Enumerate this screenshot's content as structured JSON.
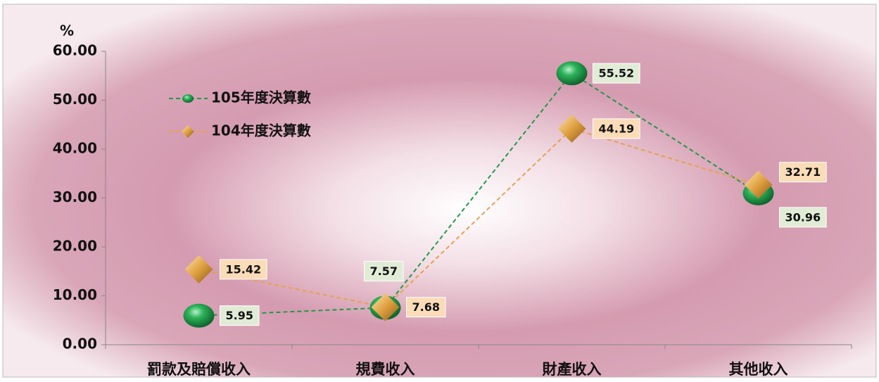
{
  "chart_data": {
    "type": "line",
    "y_label": "%",
    "categories": [
      "罰款及賠償收入",
      "規費收入",
      "財產收入",
      "其他收入"
    ],
    "series": [
      {
        "name": "105年度決算數",
        "color": "#1e9a4a",
        "marker": "sphere",
        "values": [
          5.95,
          7.57,
          55.52,
          30.96
        ]
      },
      {
        "name": "104年度決算數",
        "color": "#e8a050",
        "marker": "diamond",
        "values": [
          15.42,
          7.68,
          44.19,
          32.71
        ]
      }
    ],
    "ylim": [
      0,
      60
    ],
    "yticks": [
      {
        "value": 0,
        "label": "0.00"
      },
      {
        "value": 10,
        "label": "10.00"
      },
      {
        "value": 20,
        "label": "20.00"
      },
      {
        "value": 30,
        "label": "30.00"
      },
      {
        "value": 40,
        "label": "40.00"
      },
      {
        "value": 50,
        "label": "50.00"
      },
      {
        "value": 60,
        "label": "60.00"
      }
    ],
    "legend": "upper left"
  }
}
